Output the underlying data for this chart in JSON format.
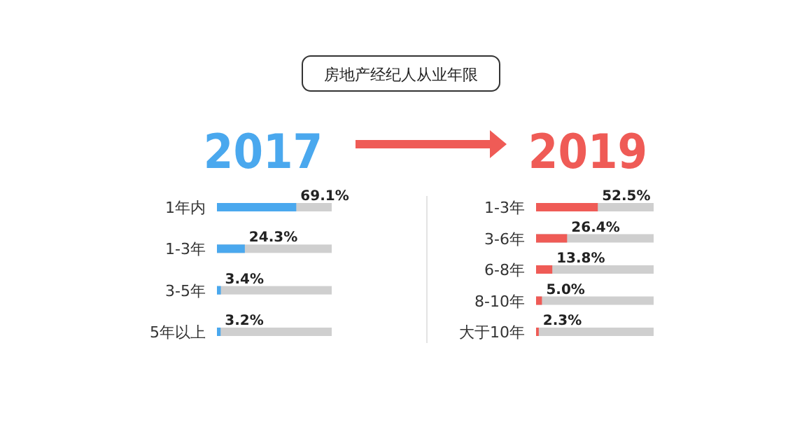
{
  "chart_data": [
    {
      "type": "bar",
      "orientation": "horizontal",
      "title": "2017",
      "annotations": [
        "房地产经纪人从业年限"
      ],
      "categories": [
        "1年内",
        "1-3年",
        "3-5年",
        "5年以上"
      ],
      "values": [
        69.1,
        24.3,
        3.4,
        3.2
      ],
      "value_labels": [
        "69.1%",
        "24.3%",
        "3.4%",
        "3.2%"
      ],
      "color": "#4aa8ee",
      "xlim": [
        0,
        100
      ],
      "tick_labels": "y"
    },
    {
      "type": "bar",
      "orientation": "horizontal",
      "title": "2019",
      "categories": [
        "1-3年",
        "3-6年",
        "6-8年",
        "8-10年",
        "大于10年"
      ],
      "values": [
        52.5,
        26.4,
        13.8,
        5.0,
        2.3
      ],
      "value_labels": [
        "52.5%",
        "26.4%",
        "13.8%",
        "5.0%",
        "2.3%"
      ],
      "color": "#ef5b56",
      "xlim": [
        0,
        100
      ],
      "tick_labels": "y"
    }
  ]
}
